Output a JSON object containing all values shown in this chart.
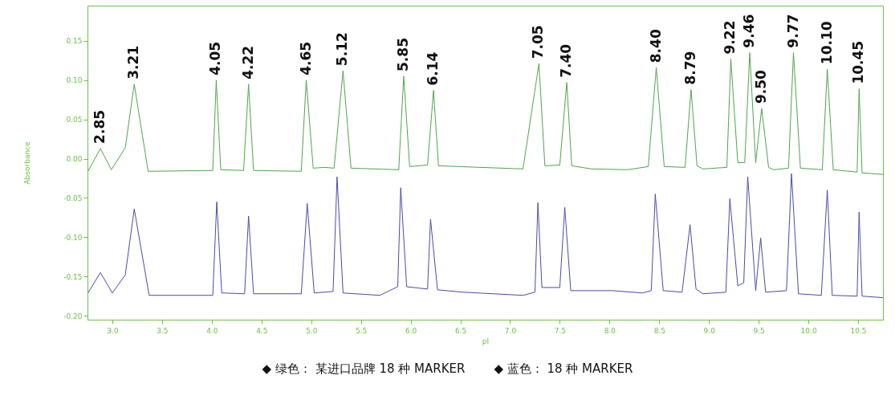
{
  "chart_data": {
    "type": "line",
    "xlabel": "pI",
    "ylabel": "Absorbance",
    "grid": false,
    "marker": "none",
    "line_style": "solid",
    "xlim": [
      2.75,
      10.75
    ],
    "ylim": [
      -0.205,
      0.195
    ],
    "xticks": [
      {
        "value": 3,
        "label": "3.0"
      },
      {
        "value": 3.5,
        "label": "3.5"
      },
      {
        "value": 4,
        "label": "4.0"
      },
      {
        "value": 4.5,
        "label": "4.5"
      },
      {
        "value": 5,
        "label": "5.0"
      },
      {
        "value": 5.5,
        "label": "5.5"
      },
      {
        "value": 6,
        "label": "6.0"
      },
      {
        "value": 6.5,
        "label": "6.5"
      },
      {
        "value": 7,
        "label": "7.0"
      },
      {
        "value": 7.5,
        "label": "7.5"
      },
      {
        "value": 8,
        "label": "8.0"
      },
      {
        "value": 8.5,
        "label": "8.5"
      },
      {
        "value": 9,
        "label": "9.0"
      },
      {
        "value": 9.5,
        "label": "9.5"
      },
      {
        "value": 10,
        "label": "10.0"
      },
      {
        "value": 10.5,
        "label": "10.5"
      }
    ],
    "yticks": [
      {
        "value": -0.2,
        "label": "-0.20"
      },
      {
        "value": -0.15,
        "label": "-0.15"
      },
      {
        "value": -0.1,
        "label": "-0.10"
      },
      {
        "value": -0.05,
        "label": "-0.05"
      },
      {
        "value": 0,
        "label": "0.00"
      },
      {
        "value": 0.05,
        "label": "0.05"
      },
      {
        "value": 0.1,
        "label": "0.10"
      },
      {
        "value": 0.15,
        "label": "0.15"
      }
    ],
    "series": [
      {
        "color": "#4ea54a",
        "x": [
          2.755,
          2.88,
          2.99,
          3.13,
          3.22,
          3.36,
          4.01,
          4.045,
          4.09,
          4.32,
          4.37,
          4.42,
          4.9,
          4.95,
          5.02,
          5.13,
          5.23,
          5.32,
          5.4,
          5.88,
          5.93,
          5.99,
          6.17,
          6.23,
          6.28,
          7.13,
          7.29,
          7.35,
          7.5,
          7.57,
          7.62,
          7.82,
          8.18,
          8.39,
          8.47,
          8.55,
          8.76,
          8.82,
          8.88,
          8.94,
          9.18,
          9.22,
          9.29,
          9.36,
          9.41,
          9.47,
          9.53,
          9.6,
          9.65,
          9.8,
          9.85,
          9.92,
          10.14,
          10.19,
          10.25,
          10.49,
          10.51,
          10.54,
          10.75
        ],
        "values": [
          -0.016,
          0.013,
          -0.014,
          0.014,
          0.095,
          -0.016,
          -0.015,
          0.1,
          -0.014,
          -0.015,
          0.095,
          -0.015,
          -0.016,
          0.1,
          -0.012,
          -0.011,
          -0.012,
          0.112,
          -0.012,
          -0.014,
          0.105,
          -0.01,
          -0.008,
          0.087,
          -0.009,
          -0.013,
          0.121,
          -0.009,
          -0.008,
          0.097,
          -0.009,
          -0.013,
          -0.014,
          -0.01,
          0.116,
          -0.01,
          -0.011,
          0.088,
          -0.009,
          -0.013,
          -0.011,
          0.127,
          -0.005,
          -0.005,
          0.135,
          -0.005,
          0.064,
          -0.011,
          -0.014,
          -0.012,
          0.135,
          -0.012,
          -0.014,
          0.114,
          -0.014,
          -0.017,
          0.089,
          -0.018,
          -0.02
        ]
      },
      {
        "color": "#4b4aa8",
        "x": [
          2.755,
          2.88,
          3.0,
          3.13,
          3.22,
          3.37,
          4.01,
          4.05,
          4.1,
          4.33,
          4.37,
          4.42,
          4.9,
          4.96,
          5.03,
          5.22,
          5.26,
          5.32,
          5.69,
          5.87,
          5.9,
          5.96,
          6.17,
          6.2,
          6.27,
          6.53,
          7.13,
          7.25,
          7.28,
          7.32,
          7.5,
          7.55,
          7.61,
          8.03,
          8.33,
          8.42,
          8.46,
          8.54,
          8.73,
          8.81,
          8.87,
          8.94,
          9.17,
          9.21,
          9.29,
          9.35,
          9.39,
          9.47,
          9.52,
          9.57,
          9.78,
          9.83,
          9.9,
          10.13,
          10.19,
          10.24,
          10.49,
          10.51,
          10.54,
          10.75
        ],
        "values": [
          -0.171,
          -0.145,
          -0.171,
          -0.148,
          -0.064,
          -0.174,
          -0.174,
          -0.055,
          -0.171,
          -0.172,
          -0.073,
          -0.172,
          -0.172,
          -0.057,
          -0.171,
          -0.169,
          -0.023,
          -0.171,
          -0.174,
          -0.163,
          -0.037,
          -0.163,
          -0.166,
          -0.077,
          -0.167,
          -0.17,
          -0.174,
          -0.17,
          -0.056,
          -0.164,
          -0.164,
          -0.062,
          -0.168,
          -0.168,
          -0.171,
          -0.168,
          -0.045,
          -0.168,
          -0.17,
          -0.084,
          -0.166,
          -0.172,
          -0.17,
          -0.051,
          -0.162,
          -0.158,
          -0.023,
          -0.168,
          -0.101,
          -0.17,
          -0.168,
          -0.019,
          -0.172,
          -0.174,
          -0.04,
          -0.174,
          -0.175,
          -0.068,
          -0.175,
          -0.177
        ]
      }
    ],
    "annotations": [
      {
        "text": "2.85",
        "x": 2.88,
        "y": 0.013
      },
      {
        "text": "3.21",
        "x": 3.22,
        "y": 0.095
      },
      {
        "text": "4.05",
        "x": 4.045,
        "y": 0.1
      },
      {
        "text": "4.22",
        "x": 4.37,
        "y": 0.095
      },
      {
        "text": "4.65",
        "x": 4.95,
        "y": 0.1
      },
      {
        "text": "5.12",
        "x": 5.32,
        "y": 0.112
      },
      {
        "text": "5.85",
        "x": 5.93,
        "y": 0.105
      },
      {
        "text": "6.14",
        "x": 6.23,
        "y": 0.087
      },
      {
        "text": "7.05",
        "x": 7.29,
        "y": 0.121
      },
      {
        "text": "7.40",
        "x": 7.57,
        "y": 0.097
      },
      {
        "text": "8.40",
        "x": 8.47,
        "y": 0.116
      },
      {
        "text": "8.79",
        "x": 8.82,
        "y": 0.088
      },
      {
        "text": "9.22",
        "x": 9.22,
        "y": 0.127
      },
      {
        "text": "9.46",
        "x": 9.41,
        "y": 0.135
      },
      {
        "text": "9.50",
        "x": 9.53,
        "y": 0.064
      },
      {
        "text": "9.77",
        "x": 9.85,
        "y": 0.135
      },
      {
        "text": "10.10",
        "x": 10.19,
        "y": 0.114
      },
      {
        "text": "10.45",
        "x": 10.51,
        "y": 0.089
      },
      "◆ 绿色： 某进口品牌 18 种 MARKER",
      "◆ 蓝色： 18 种 MARKER"
    ]
  }
}
